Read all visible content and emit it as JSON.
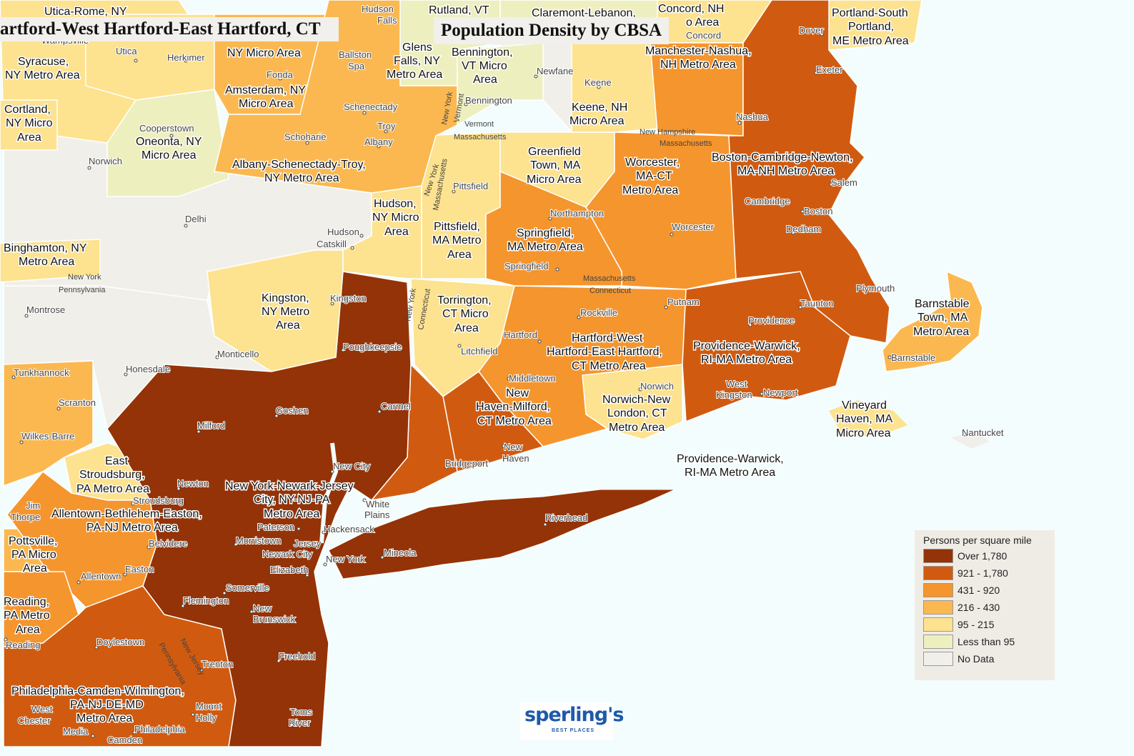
{
  "header": {
    "left_title": "artford-West Hartford-East Hartford, CT",
    "main_title": "Population Density by CBSA"
  },
  "legend": {
    "title": "Persons per square mile",
    "items": [
      {
        "label": "Over 1,780",
        "color": "#943307"
      },
      {
        "label": "921 - 1,780",
        "color": "#d05b10"
      },
      {
        "label": "431 - 920",
        "color": "#f5952d"
      },
      {
        "label": "216 - 430",
        "color": "#fbb850"
      },
      {
        "label": "95 - 215",
        "color": "#fde28f"
      },
      {
        "label": "Less than 95",
        "color": "#eeefbf"
      },
      {
        "label": "No Data",
        "color": "#f1efea"
      }
    ]
  },
  "colors": {
    "water": "#f3fdfd",
    "border": "#ffffff"
  },
  "logo": {
    "name": "sperling's",
    "tagline": "BEST PLACES"
  },
  "metro_labels": {
    "utica_rome": "Utica-Rome, NY",
    "syracuse": [
      "Syracuse,",
      "NY Metro Area"
    ],
    "cortland": [
      "Cortland,",
      "NY Micro",
      "Area"
    ],
    "oneonta": [
      "Oneonta, NY",
      "Micro Area"
    ],
    "binghamton": [
      "Binghamton, NY",
      "Metro Area"
    ],
    "amsterdam": [
      "Amsterdam, NY",
      "Micro Area"
    ],
    "gloversville": "NY Micro Area",
    "albany": [
      "Albany-Schenectady-Troy,",
      "NY Metro Area"
    ],
    "glens_falls": [
      "Glens",
      "Falls, NY",
      "Metro Area"
    ],
    "bennington": [
      "Bennington,",
      "VT Micro",
      "Area"
    ],
    "rutland": "Rutland, VT",
    "claremont": "Claremont-Lebanon,",
    "concord": [
      "Concord, NH",
      "o Area"
    ],
    "manchester": [
      "Manchester-Nashua,",
      "NH Metro Area"
    ],
    "portland": [
      "Portland-South",
      "Portland,",
      "ME Metro Area"
    ],
    "keene": [
      "Keene, NH",
      "Micro Area"
    ],
    "greenfield": [
      "Greenfield",
      "Town, MA",
      "Micro Area"
    ],
    "worcester": [
      "Worcester,",
      "MA-CT",
      "Metro Area"
    ],
    "boston": [
      "Boston-Cambridge-Newton,",
      "MA-NH Metro Area"
    ],
    "hudson": [
      "Hudson,",
      "NY Micro",
      "Area"
    ],
    "pittsfield": [
      "Pittsfield,",
      "MA Metro",
      "Area"
    ],
    "springfield": [
      "Springfield,",
      "MA Metro Area"
    ],
    "kingston": [
      "Kingston,",
      "NY Metro",
      "Area"
    ],
    "torrington": [
      "Torrington,",
      "CT Micro",
      "Area"
    ],
    "hartford": [
      "Hartford-West",
      "Hartford-East Hartford,",
      "CT Metro Area"
    ],
    "providence": [
      "Providence-Warwick,",
      "RI-MA Metro Area"
    ],
    "providence2": [
      "Providence-Warwick,",
      "RI-MA Metro Area"
    ],
    "barnstable": [
      "Barnstable",
      "Town, MA",
      "Metro Area"
    ],
    "vineyard": [
      "Vineyard",
      "Haven, MA",
      "Micro Area"
    ],
    "norwich": [
      "Norwich-New",
      "London, CT",
      "Metro Area"
    ],
    "new_haven": [
      "New",
      "Haven-Milford,",
      "CT Metro Area"
    ],
    "new_york": [
      "New York-Newark-Jersey",
      "City, NY-NJ-PA",
      "Metro Area"
    ],
    "east_stroudsburg": [
      "East",
      "Stroudsburg,",
      "PA Metro Area"
    ],
    "allentown": [
      "Allentown-Bethlehem-Easton,",
      "PA-NJ Metro Area"
    ],
    "pottsville": [
      "Pottsville,",
      "PA Micro",
      "Area"
    ],
    "reading": [
      "Reading,",
      "PA Metro",
      "Area"
    ],
    "philadelphia": [
      "Philadelphia-Camden-Wilmington,",
      "PA-NJ-DE-MD",
      "Metro Area"
    ],
    "hudson_falls": [
      "Hudson",
      "Falls"
    ]
  },
  "cities": {
    "utica": "Utica",
    "herkimer": "Herkimer",
    "wampsville": "Wampsville",
    "fonda": "Fonda",
    "ballston": [
      "Ballston",
      "Spa"
    ],
    "schenectady": "Schenectady",
    "troy": "Troy",
    "albany": "Albany",
    "schoharie": "Schoharie",
    "cooperstown": "Cooperstown",
    "norwich_ny": "Norwich",
    "delhi": "Delhi",
    "hudson": "Hudson",
    "catskill": "Catskill",
    "bennington": "Bennington",
    "newfane": "Newfane",
    "keene": "Keene",
    "concord": "Concord",
    "dover": "Dover",
    "exeter": "Exeter",
    "nashua": "Nashua",
    "pittsfield": "Pittsfield",
    "northampton": "Northampton",
    "worcester": "Worcester",
    "cambridge": "Cambridge",
    "boston": "Boston",
    "dedham": "Dedham",
    "salem": "Salem",
    "plymouth": "Plymouth",
    "taunton": "Taunton",
    "providence": "Providence",
    "springfield": "Springfield",
    "rockville": "Rockville",
    "putnam": "Putnam",
    "hartford": "Hartford",
    "litchfield": "Litchfield",
    "middletown": "Middletown",
    "norwich_ct": "Norwich",
    "west_kingston": [
      "West",
      "Kingston"
    ],
    "newport": "Newport",
    "barnstable": "Barnstable",
    "nantucket": "Nantucket",
    "kingston": "Kingston",
    "poughkeepsie": "Poughkeepsie",
    "montrose": "Montrose",
    "monticello": "Monticello",
    "honesdale": "Honesdale",
    "goshen": "Goshen",
    "carmel": "Carmel",
    "milford": "Milford",
    "tunkhannock": "Tunkhannock",
    "scranton": "Scranton",
    "wilkes_barre": "Wilkes-Barre",
    "newton": "Newton",
    "stroudsburg": "Stroudsburg",
    "jim_thorpe": [
      "Jim",
      "Thorpe"
    ],
    "belvidere": "Belvidere",
    "paterson": "Paterson",
    "hackensack": "Hackensack",
    "morristown": "Morristown",
    "jersey_city": [
      "Jersey",
      "Newark City"
    ],
    "new_york": "New York",
    "white_plains": [
      "White",
      "Plains"
    ],
    "new_city": "New City",
    "elizabeth": "Elizabeth",
    "mineola": "Mineola",
    "riverhead": "Riverhead",
    "bridgeport": "Bridgeport",
    "new_haven": [
      "New",
      "Haven"
    ],
    "easton": "Easton",
    "allentown": "Allentown",
    "somerville": "Somerville",
    "flemington": "Flemington",
    "new_brunswick": [
      "New",
      "Brunswick"
    ],
    "freehold": "Freehold",
    "trenton": "Trenton",
    "doylestown": "Doylestown",
    "mount_holly": [
      "Mount",
      "Holly"
    ],
    "toms_river": [
      "Toms",
      "River"
    ],
    "philadelphia": "Philadelphia",
    "camden": "Camden",
    "media": "Media",
    "west_chester": [
      "West",
      "Chester"
    ],
    "reading": "Reading"
  },
  "states": {
    "ny_pa": [
      "New York",
      "Pennsylvania"
    ],
    "ny_vt": [
      "New York",
      "Vermont"
    ],
    "vt_ma": [
      "Vermont",
      "Massachusetts"
    ],
    "ny_ma": [
      "New York",
      "Massachusetts"
    ],
    "ma_ct": [
      "Massachusetts",
      "Connecticut"
    ],
    "ny_ct": [
      "New York",
      "Connecticut"
    ],
    "nh_ma": [
      "New Hampshire",
      "Massachusetts"
    ],
    "nj_pa": [
      "New Jersey",
      "Pennsylvania"
    ]
  }
}
